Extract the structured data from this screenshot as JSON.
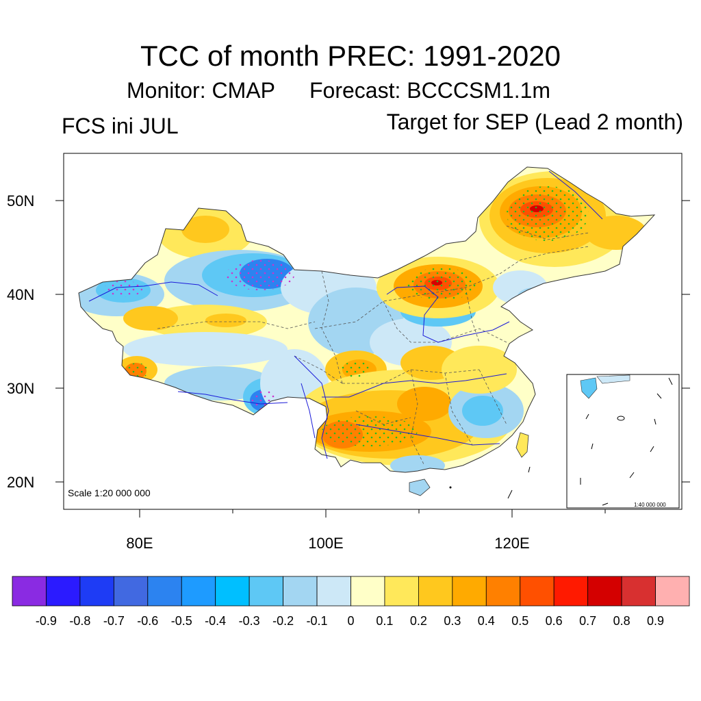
{
  "title": "TCC of month PREC: 1991-2020",
  "monitor": "Monitor: CMAP",
  "forecast": "Forecast: BCCCSM1.1m",
  "init": "FCS ini JUL",
  "target": "Target for SEP (Lead 2 month)",
  "scale_main": "Scale 1:20 000 000",
  "scale_inset": "1:40 000 000",
  "lat_labels": [
    "50N",
    "40N",
    "30N",
    "20N"
  ],
  "lon_labels": [
    "80E",
    "100E",
    "120E"
  ],
  "colorbar": {
    "colors": [
      "#8a2be2",
      "#2b1bff",
      "#1e3cf5",
      "#4169e1",
      "#2c83f0",
      "#1e9bff",
      "#00bfff",
      "#5ec8f5",
      "#a3d6f2",
      "#cde8f7",
      "#ffffc8",
      "#ffe85a",
      "#ffc81e",
      "#ffaa00",
      "#ff8000",
      "#ff5000",
      "#ff1a00",
      "#d40000",
      "#d83030",
      "#ffb0b0"
    ],
    "labels": [
      "-0.9",
      "-0.8",
      "-0.7",
      "-0.6",
      "-0.5",
      "-0.4",
      "-0.3",
      "-0.2",
      "-0.1",
      "0",
      "0.1",
      "0.2",
      "0.3",
      "0.4",
      "0.5",
      "0.6",
      "0.7",
      "0.8",
      "0.9"
    ]
  },
  "colors": {
    "river": "#1a1ad8",
    "significance_positive": "#22bb22",
    "significance_negative": "#cc33cc"
  }
}
